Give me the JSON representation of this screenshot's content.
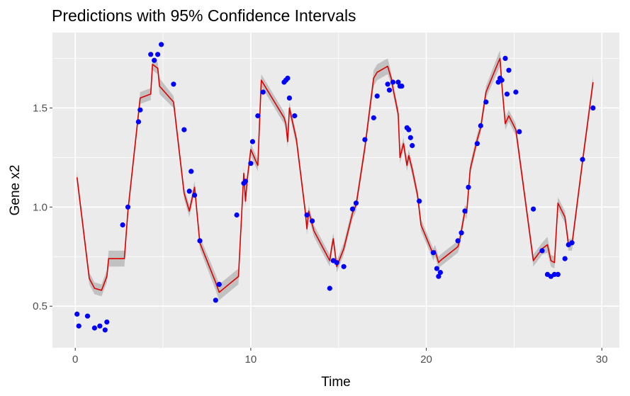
{
  "chart_data": {
    "type": "line",
    "title": "Predictions with 95% Confidence Intervals",
    "xlabel": "Time",
    "ylabel": "Gene x2",
    "xlim": [
      -1.3,
      31.0
    ],
    "ylim": [
      0.29,
      1.88
    ],
    "x_ticks": [
      0,
      10,
      20,
      30
    ],
    "x_tick_labels": [
      "0",
      "10",
      "20",
      "30"
    ],
    "y_ticks": [
      0.5,
      1.0,
      1.5
    ],
    "y_tick_labels": [
      "0.5",
      "1.0",
      "1.5"
    ],
    "grid": true,
    "legend": "none",
    "colors": {
      "panel": "#ebebeb",
      "grid": "#ffffff",
      "prediction_line": "#dd0000",
      "confidence_band": "#bdbdbd",
      "observed_points": "#0000ff"
    },
    "series": [
      {
        "kind": "observed",
        "x": [
          0.1,
          0.2,
          0.7,
          1.1,
          1.4,
          1.7,
          1.8,
          2.7,
          3.0,
          3.6,
          3.7,
          4.3,
          4.5,
          4.7,
          4.9,
          5.6,
          6.2,
          6.5,
          6.6,
          6.8,
          7.1,
          8.0,
          8.2,
          9.2,
          9.6,
          9.7,
          10.0,
          10.1,
          10.4,
          10.7,
          11.9,
          12.0,
          12.1,
          12.2,
          12.5,
          13.2,
          13.5,
          14.5,
          14.7,
          14.9,
          15.3,
          15.8,
          16.0,
          16.5,
          17.0,
          17.2,
          17.8,
          17.9,
          18.1,
          18.4,
          18.5,
          18.6,
          18.9,
          19.0,
          19.1,
          19.2,
          19.6,
          20.4,
          20.6,
          20.7,
          20.8,
          21.8,
          22.0,
          22.2,
          22.4,
          22.9,
          23.1,
          23.4,
          24.1,
          24.2,
          24.3,
          24.5,
          24.6,
          24.7,
          25.1,
          25.3,
          26.1,
          26.6,
          26.9,
          27.1,
          27.3,
          27.5,
          27.9,
          28.1,
          28.3,
          28.9,
          29.5
        ],
        "y": [
          0.46,
          0.4,
          0.45,
          0.39,
          0.4,
          0.38,
          0.42,
          0.91,
          1.0,
          1.43,
          1.49,
          1.77,
          1.74,
          1.77,
          1.82,
          1.62,
          1.39,
          1.08,
          1.18,
          1.06,
          0.83,
          0.53,
          0.61,
          0.96,
          1.12,
          1.13,
          1.22,
          1.33,
          1.46,
          1.58,
          1.63,
          1.64,
          1.65,
          1.55,
          1.46,
          0.96,
          0.93,
          0.59,
          0.73,
          0.72,
          0.7,
          0.99,
          1.02,
          1.34,
          1.45,
          1.56,
          1.62,
          1.59,
          1.63,
          1.63,
          1.61,
          1.61,
          1.4,
          1.39,
          1.35,
          1.31,
          1.03,
          0.77,
          0.69,
          0.65,
          0.67,
          0.83,
          0.87,
          0.98,
          1.1,
          1.32,
          1.41,
          1.53,
          1.63,
          1.65,
          1.64,
          1.75,
          1.57,
          1.69,
          1.58,
          1.38,
          0.99,
          0.78,
          0.66,
          0.65,
          0.66,
          0.66,
          0.74,
          0.81,
          0.82,
          1.24,
          1.5
        ]
      },
      {
        "kind": "prediction",
        "x": [
          0.1,
          0.8,
          1.1,
          1.5,
          1.8,
          1.9,
          2.8,
          3.0,
          3.7,
          4.3,
          4.4,
          4.7,
          4.8,
          5.6,
          6.2,
          6.5,
          6.8,
          7.1,
          8.0,
          8.2,
          9.3,
          9.6,
          9.7,
          9.8,
          10.0,
          10.1,
          10.4,
          10.6,
          11.9,
          12.0,
          12.1,
          12.2,
          12.6,
          13.1,
          13.2,
          13.3,
          13.6,
          14.5,
          14.6,
          14.7,
          14.9,
          15.3,
          15.8,
          16.0,
          16.5,
          17.0,
          17.2,
          17.8,
          18.0,
          18.1,
          18.4,
          18.5,
          18.7,
          18.9,
          19.0,
          19.2,
          19.5,
          19.7,
          20.4,
          20.5,
          20.7,
          20.8,
          21.8,
          21.9,
          22.2,
          22.3,
          22.5,
          22.9,
          23.1,
          23.4,
          24.1,
          24.2,
          24.3,
          24.5,
          24.6,
          24.7,
          25.1,
          25.3,
          26.1,
          26.6,
          26.9,
          27.1,
          27.3,
          27.5,
          27.9,
          28.1,
          28.3,
          28.9,
          29.5
        ],
        "y": [
          1.15,
          0.64,
          0.59,
          0.58,
          0.65,
          0.74,
          0.74,
          0.98,
          1.55,
          1.57,
          1.72,
          1.7,
          1.61,
          1.53,
          1.07,
          0.98,
          1.1,
          0.82,
          0.62,
          0.57,
          0.65,
          1.17,
          1.03,
          1.14,
          1.29,
          1.27,
          1.21,
          1.64,
          1.45,
          1.42,
          1.33,
          1.5,
          1.34,
          0.98,
          0.89,
          0.98,
          0.88,
          0.73,
          0.79,
          0.84,
          0.7,
          0.79,
          0.97,
          1.01,
          1.3,
          1.65,
          1.68,
          1.71,
          1.65,
          1.6,
          1.47,
          1.25,
          1.32,
          1.21,
          1.26,
          1.19,
          1.06,
          0.91,
          0.76,
          0.78,
          0.72,
          0.73,
          0.8,
          0.83,
          0.98,
          0.97,
          1.19,
          1.34,
          1.4,
          1.58,
          1.73,
          1.75,
          1.62,
          1.42,
          1.44,
          1.46,
          1.39,
          1.26,
          0.73,
          0.79,
          0.81,
          0.73,
          0.72,
          1.02,
          0.95,
          0.81,
          0.81,
          1.23,
          1.63
        ],
        "ci_half_width": [
          0.03,
          0.03,
          0.03,
          0.03,
          0.03,
          0.04,
          0.04,
          0.03,
          0.03,
          0.03,
          0.03,
          0.03,
          0.04,
          0.03,
          0.03,
          0.03,
          0.03,
          0.03,
          0.04,
          0.04,
          0.04,
          0.03,
          0.03,
          0.03,
          0.03,
          0.03,
          0.03,
          0.03,
          0.03,
          0.03,
          0.03,
          0.03,
          0.03,
          0.03,
          0.03,
          0.03,
          0.03,
          0.03,
          0.03,
          0.03,
          0.03,
          0.03,
          0.03,
          0.03,
          0.03,
          0.04,
          0.04,
          0.04,
          0.03,
          0.03,
          0.03,
          0.03,
          0.03,
          0.03,
          0.03,
          0.03,
          0.03,
          0.03,
          0.03,
          0.03,
          0.03,
          0.03,
          0.03,
          0.03,
          0.03,
          0.03,
          0.03,
          0.03,
          0.03,
          0.03,
          0.04,
          0.04,
          0.03,
          0.03,
          0.03,
          0.03,
          0.03,
          0.03,
          0.03,
          0.03,
          0.04,
          0.03,
          0.03,
          0.03,
          0.03,
          0.03,
          0.03,
          0.03,
          0.03
        ]
      }
    ]
  }
}
